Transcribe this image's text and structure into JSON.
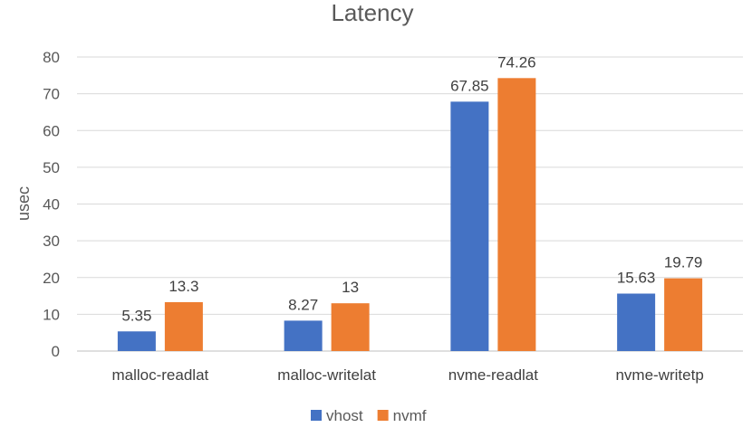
{
  "chart_data": {
    "type": "bar",
    "title": "Latency",
    "ylabel": "usec",
    "xlabel": "",
    "ylim": [
      0,
      80
    ],
    "yticks": [
      0,
      10,
      20,
      30,
      40,
      50,
      60,
      70,
      80
    ],
    "grid": true,
    "legend_position": "bottom",
    "categories": [
      "malloc-readlat",
      "malloc-writelat",
      "nvme-readlat",
      "nvme-writetp"
    ],
    "series": [
      {
        "name": "vhost",
        "color": "#4472c4",
        "values": [
          5.35,
          8.27,
          67.85,
          15.63
        ]
      },
      {
        "name": "nvmf",
        "color": "#ed7d31",
        "values": [
          13.3,
          13,
          74.26,
          19.79
        ]
      }
    ]
  }
}
